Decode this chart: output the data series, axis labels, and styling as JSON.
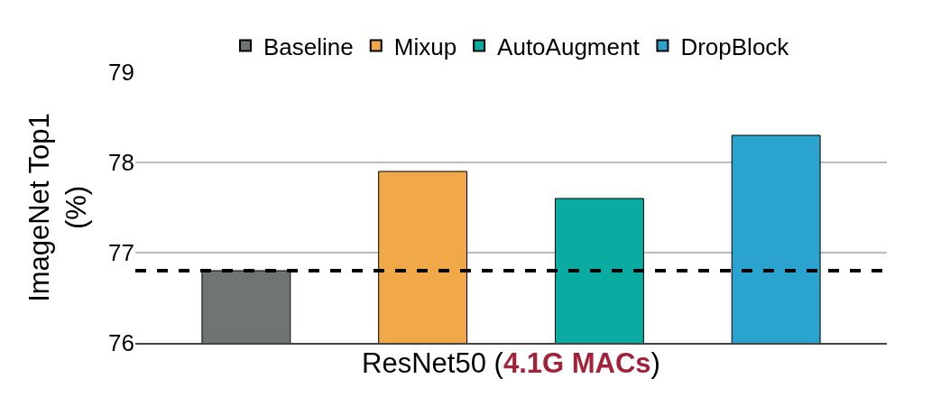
{
  "chart_data": {
    "type": "bar",
    "ylabel": "ImageNet Top1 (%)",
    "xlabel": "ResNet50 (4.1G MACs)",
    "categories": [
      null
    ],
    "series": [
      {
        "name": "Baseline",
        "color": "#6f7672",
        "values": [
          76.8
        ]
      },
      {
        "name": "Mixup",
        "color": "#f0a848",
        "values": [
          77.9
        ]
      },
      {
        "name": "AutoAugment",
        "color": "#0aaba0",
        "values": [
          77.6
        ]
      },
      {
        "name": "DropBlock",
        "color": "#2ba3cf",
        "values": [
          78.3
        ]
      }
    ],
    "ylim": [
      76,
      79
    ],
    "yticks": [
      76,
      77,
      78,
      79
    ],
    "grid": "y",
    "legend": "top",
    "ref_lines": [
      {
        "axis": "y",
        "value": 76.8,
        "label": null,
        "color": "#000000",
        "line_style": "dashed"
      }
    ]
  }
}
